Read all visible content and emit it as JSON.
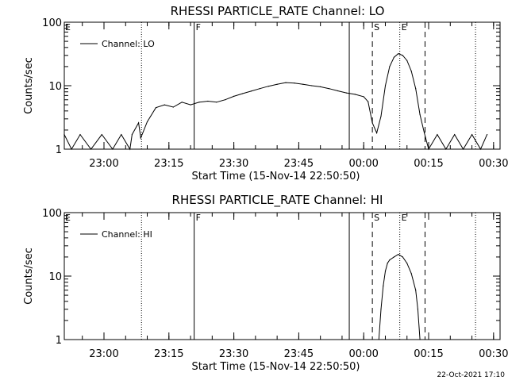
{
  "timestamp": "22-Oct-2021 17:10",
  "chart_data": [
    {
      "type": "line",
      "title": "RHESSI PARTICLE_RATE Channel: LO",
      "xlabel": "Start Time (15-Nov-14 22:50:50)",
      "ylabel": "Counts/sec",
      "xlim": [
        "22:50:50",
        "00:31:30"
      ],
      "ylim": [
        1,
        100
      ],
      "yscale": "log",
      "x_ticks": [
        "23:00",
        "23:15",
        "23:30",
        "23:45",
        "00:00",
        "00:15",
        "00:30"
      ],
      "y_ticks": [
        "1",
        "10",
        "100"
      ],
      "legend": "upper-left",
      "series": [
        {
          "name": "Channel: LO",
          "x": [
            "22:50:50",
            "22:52:30",
            "22:54:30",
            "22:57:00",
            "22:59:30",
            "23:02:00",
            "23:04:00",
            "23:06:00",
            "23:06:30",
            "23:08:00",
            "23:08:30",
            "23:10:00",
            "23:12:00",
            "23:14:00",
            "23:16:00",
            "23:18:00",
            "23:20:00",
            "23:22:00",
            "23:24:00",
            "23:26:00",
            "23:28:00",
            "23:30:00",
            "23:32:00",
            "23:34:00",
            "23:36:00",
            "23:38:00",
            "23:40:00",
            "23:42:00",
            "23:44:00",
            "23:46:00",
            "23:48:00",
            "23:50:00",
            "23:52:00",
            "23:54:00",
            "23:56:00",
            "23:58:00",
            "00:00:00",
            "00:01:00",
            "00:02:00",
            "00:03:00",
            "00:04:00",
            "00:05:00",
            "00:06:00",
            "00:07:00",
            "00:08:00",
            "00:09:00",
            "00:10:00",
            "00:11:00",
            "00:12:00",
            "00:13:00",
            "00:14:00",
            "00:15:00",
            "00:17:00",
            "00:19:00",
            "00:21:00",
            "00:23:00",
            "00:25:00",
            "00:27:00",
            "00:28:30"
          ],
          "y": [
            1.7,
            1.0,
            1.7,
            1.0,
            1.7,
            1.0,
            1.7,
            1.0,
            1.7,
            2.6,
            1.5,
            2.7,
            4.5,
            5.0,
            4.6,
            5.5,
            5.0,
            5.5,
            5.7,
            5.5,
            6.0,
            6.8,
            7.5,
            8.2,
            9.0,
            9.8,
            10.5,
            11.2,
            11.0,
            10.5,
            10.0,
            9.6,
            9.0,
            8.3,
            7.7,
            7.3,
            6.7,
            5.6,
            2.6,
            1.8,
            3.3,
            10.0,
            20.0,
            28.0,
            32.0,
            30.0,
            25.0,
            17.0,
            9.0,
            3.5,
            1.8,
            1.0,
            1.7,
            1.0,
            1.7,
            1.0,
            1.7,
            1.0,
            1.7
          ]
        }
      ],
      "event_lines": [
        {
          "time": "23:08:40",
          "style": "dotted",
          "label": ""
        },
        {
          "time": "23:20:50",
          "style": "solid",
          "label": "F"
        },
        {
          "time": "23:56:40",
          "style": "solid",
          "label": ""
        },
        {
          "time": "00:02:00",
          "style": "dashed",
          "label": "S"
        },
        {
          "time": "00:08:20",
          "style": "dotted",
          "label": "E"
        },
        {
          "time": "00:14:10",
          "style": "dashed",
          "label": ""
        },
        {
          "time": "00:25:50",
          "style": "dotted",
          "label": ""
        }
      ],
      "corner_label": "E"
    },
    {
      "type": "line",
      "title": "RHESSI PARTICLE_RATE Channel: HI",
      "xlabel": "Start Time (15-Nov-14 22:50:50)",
      "ylabel": "Counts/sec",
      "xlim": [
        "22:50:50",
        "00:31:30"
      ],
      "ylim": [
        1,
        100
      ],
      "yscale": "log",
      "x_ticks": [
        "23:00",
        "23:15",
        "23:30",
        "23:45",
        "00:00",
        "00:15",
        "00:30"
      ],
      "y_ticks": [
        "1",
        "10",
        "100"
      ],
      "legend": "upper-left",
      "series": [
        {
          "name": "Channel: HI",
          "x": [
            "00:03:30",
            "00:04:00",
            "00:04:30",
            "00:05:00",
            "00:05:30",
            "00:06:00",
            "00:07:00",
            "00:08:00",
            "00:09:00",
            "00:10:00",
            "00:11:00",
            "00:12:00",
            "00:12:30",
            "00:13:00"
          ],
          "y": [
            1.0,
            3.0,
            7.0,
            12.0,
            16.0,
            18.0,
            20.0,
            22.0,
            20.0,
            16.0,
            11.0,
            6.0,
            3.0,
            1.0
          ]
        }
      ],
      "event_lines": [
        {
          "time": "23:08:40",
          "style": "dotted",
          "label": ""
        },
        {
          "time": "23:20:50",
          "style": "solid",
          "label": "F"
        },
        {
          "time": "23:56:40",
          "style": "solid",
          "label": ""
        },
        {
          "time": "00:02:00",
          "style": "dashed",
          "label": "S"
        },
        {
          "time": "00:08:20",
          "style": "dotted",
          "label": "E"
        },
        {
          "time": "00:14:10",
          "style": "dashed",
          "label": ""
        },
        {
          "time": "00:25:50",
          "style": "dotted",
          "label": ""
        }
      ],
      "corner_label": "E"
    }
  ]
}
